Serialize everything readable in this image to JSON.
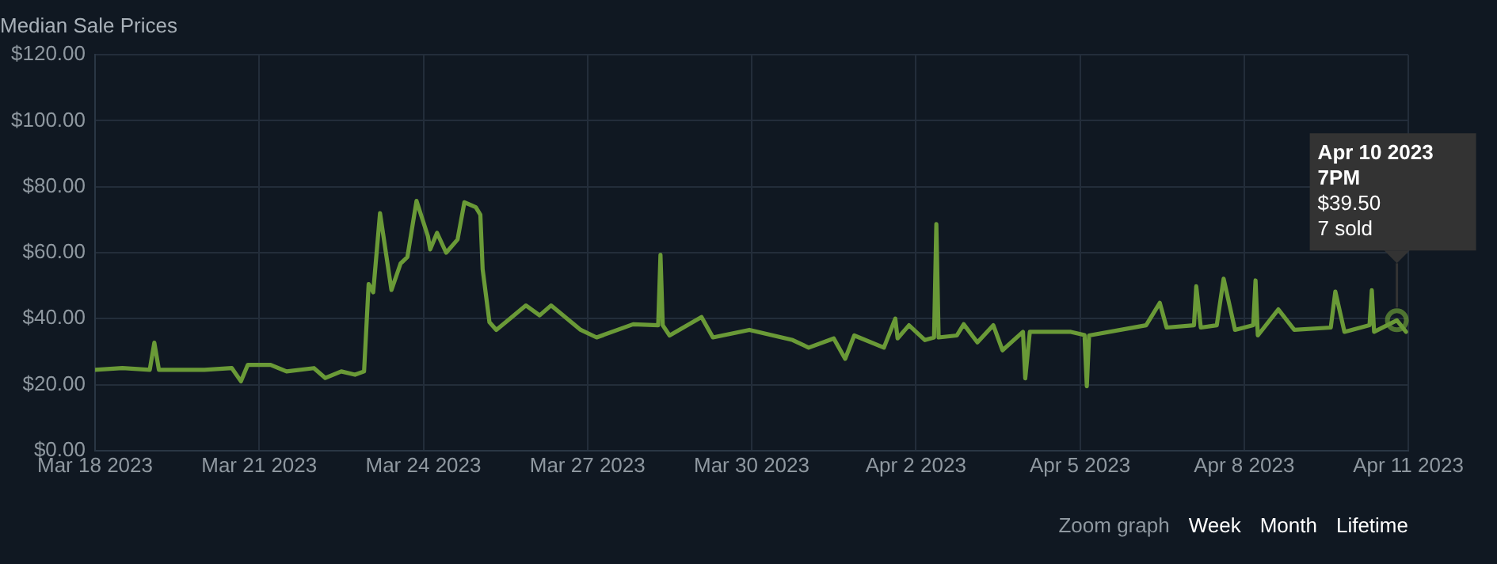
{
  "chart_data": {
    "type": "line",
    "title": "Median Sale Prices",
    "x": [
      "2023-03-18T00:00",
      "2023-03-18T12:00",
      "2023-03-19T00:00",
      "2023-03-19T02:00",
      "2023-03-19T04:00",
      "2023-03-20T00:00",
      "2023-03-20T12:00",
      "2023-03-20T16:00",
      "2023-03-20T19:00",
      "2023-03-21T05:00",
      "2023-03-21T12:00",
      "2023-03-22T00:00",
      "2023-03-22T05:00",
      "2023-03-22T12:00",
      "2023-03-22T18:00",
      "2023-03-22T22:00",
      "2023-03-23T00:00",
      "2023-03-23T02:00",
      "2023-03-23T05:00",
      "2023-03-23T10:00",
      "2023-03-23T14:00",
      "2023-03-23T17:00",
      "2023-03-23T21:00",
      "2023-03-24T02:00",
      "2023-03-24T03:00",
      "2023-03-24T06:00",
      "2023-03-24T10:00",
      "2023-03-24T15:00",
      "2023-03-24T18:00",
      "2023-03-24T23:00",
      "2023-03-25T01:00",
      "2023-03-25T02:00",
      "2023-03-25T05:00",
      "2023-03-25T08:00",
      "2023-03-25T14:00",
      "2023-03-25T21:00",
      "2023-03-26T03:00",
      "2023-03-26T08:00",
      "2023-03-26T21:00",
      "2023-03-27T04:00",
      "2023-03-27T20:00",
      "2023-03-28T07:00",
      "2023-03-28T08:00",
      "2023-03-28T09:00",
      "2023-03-28T12:00",
      "2023-03-29T02:00",
      "2023-03-29T07:00",
      "2023-03-29T23:00",
      "2023-03-30T18:00",
      "2023-03-31T01:00",
      "2023-03-31T12:00",
      "2023-03-31T17:00",
      "2023-03-31T21:00",
      "2023-04-01T10:00",
      "2023-04-01T15:00",
      "2023-04-01T16:00",
      "2023-04-01T21:00",
      "2023-04-02T04:00",
      "2023-04-02T08:00",
      "2023-04-02T09:00",
      "2023-04-02T10:00",
      "2023-04-02T18:00",
      "2023-04-02T21:00",
      "2023-04-03T03:00",
      "2023-04-03T10:00",
      "2023-04-03T14:00",
      "2023-04-03T23:00",
      "2023-04-04T00:00",
      "2023-04-04T02:00",
      "2023-04-04T20:00",
      "2023-04-05T02:00",
      "2023-04-05T03:00",
      "2023-04-05T04:00",
      "2023-04-06T05:00",
      "2023-04-06T11:00",
      "2023-04-06T14:00",
      "2023-04-07T02:00",
      "2023-04-07T03:00",
      "2023-04-07T05:00",
      "2023-04-07T12:00",
      "2023-04-07T15:00",
      "2023-04-07T20:00",
      "2023-04-08T04:00",
      "2023-04-08T05:00",
      "2023-04-08T06:00",
      "2023-04-08T15:00",
      "2023-04-08T22:00",
      "2023-04-09T14:00",
      "2023-04-09T16:00",
      "2023-04-09T20:00",
      "2023-04-10T07:00",
      "2023-04-10T08:00",
      "2023-04-10T09:00",
      "2023-04-10T19:00",
      "2023-04-10T23:00"
    ],
    "series": [
      {
        "color": "#6a9a37",
        "values": [
          24.5,
          25,
          24.5,
          32.7,
          24.5,
          24.5,
          25,
          21,
          26,
          26,
          24,
          25,
          22,
          24,
          23,
          24,
          50.5,
          48,
          72,
          48.7,
          56.7,
          58.7,
          75.7,
          65,
          61,
          66,
          60,
          64,
          75.3,
          73.8,
          71.5,
          55,
          38.9,
          36.6,
          40,
          44,
          41,
          44,
          36.6,
          34.3,
          38.3,
          38,
          59.4,
          38,
          34.9,
          40.5,
          34.3,
          36.6,
          33.5,
          31.2,
          34,
          27.8,
          34.9,
          31.2,
          40,
          34,
          38,
          33.5,
          34.3,
          68.7,
          34.3,
          34.9,
          38.3,
          32.8,
          38,
          30.4,
          36,
          21.9,
          36,
          36,
          35,
          19.5,
          34.9,
          38,
          44.8,
          37.3,
          38,
          49.8,
          37.3,
          38,
          52.1,
          36.6,
          38,
          51.6,
          34.9,
          42.8,
          36.6,
          37.3,
          48.2,
          36,
          38,
          48.6,
          36,
          39.5,
          36
        ]
      }
    ],
    "xlim": [
      "2023-03-18T00:00",
      "2023-04-11T00:00"
    ],
    "xticks": [
      {
        "value": "2023-03-18T00:00",
        "label": "Mar 18 2023"
      },
      {
        "value": "2023-03-21T00:00",
        "label": "Mar 21 2023"
      },
      {
        "value": "2023-03-24T00:00",
        "label": "Mar 24 2023"
      },
      {
        "value": "2023-03-27T00:00",
        "label": "Mar 27 2023"
      },
      {
        "value": "2023-03-30T00:00",
        "label": "Mar 30 2023"
      },
      {
        "value": "2023-04-02T00:00",
        "label": "Apr 2 2023"
      },
      {
        "value": "2023-04-05T00:00",
        "label": "Apr 5 2023"
      },
      {
        "value": "2023-04-08T00:00",
        "label": "Apr 8 2023"
      },
      {
        "value": "2023-04-11T00:00",
        "label": "Apr 11 2023"
      }
    ],
    "ylim": [
      0,
      120
    ],
    "yticks": [
      {
        "value": 0,
        "label": "$0.00"
      },
      {
        "value": 20,
        "label": "$20.00"
      },
      {
        "value": 40,
        "label": "$40.00"
      },
      {
        "value": 60,
        "label": "$60.00"
      },
      {
        "value": 80,
        "label": "$80.00"
      },
      {
        "value": 100,
        "label": "$100.00"
      },
      {
        "value": 120,
        "label": "$120.00"
      }
    ],
    "grid": true,
    "legend": false,
    "marker": "none",
    "line_style": "solid",
    "annotations": [
      {
        "text": "Apr 10 2023\n7PM\n$39.50\n7 sold",
        "x": "2023-04-10T19:00",
        "y": 39.5
      },
      "Zoom graph",
      "Week",
      "Month",
      "Lifetime"
    ]
  }
}
